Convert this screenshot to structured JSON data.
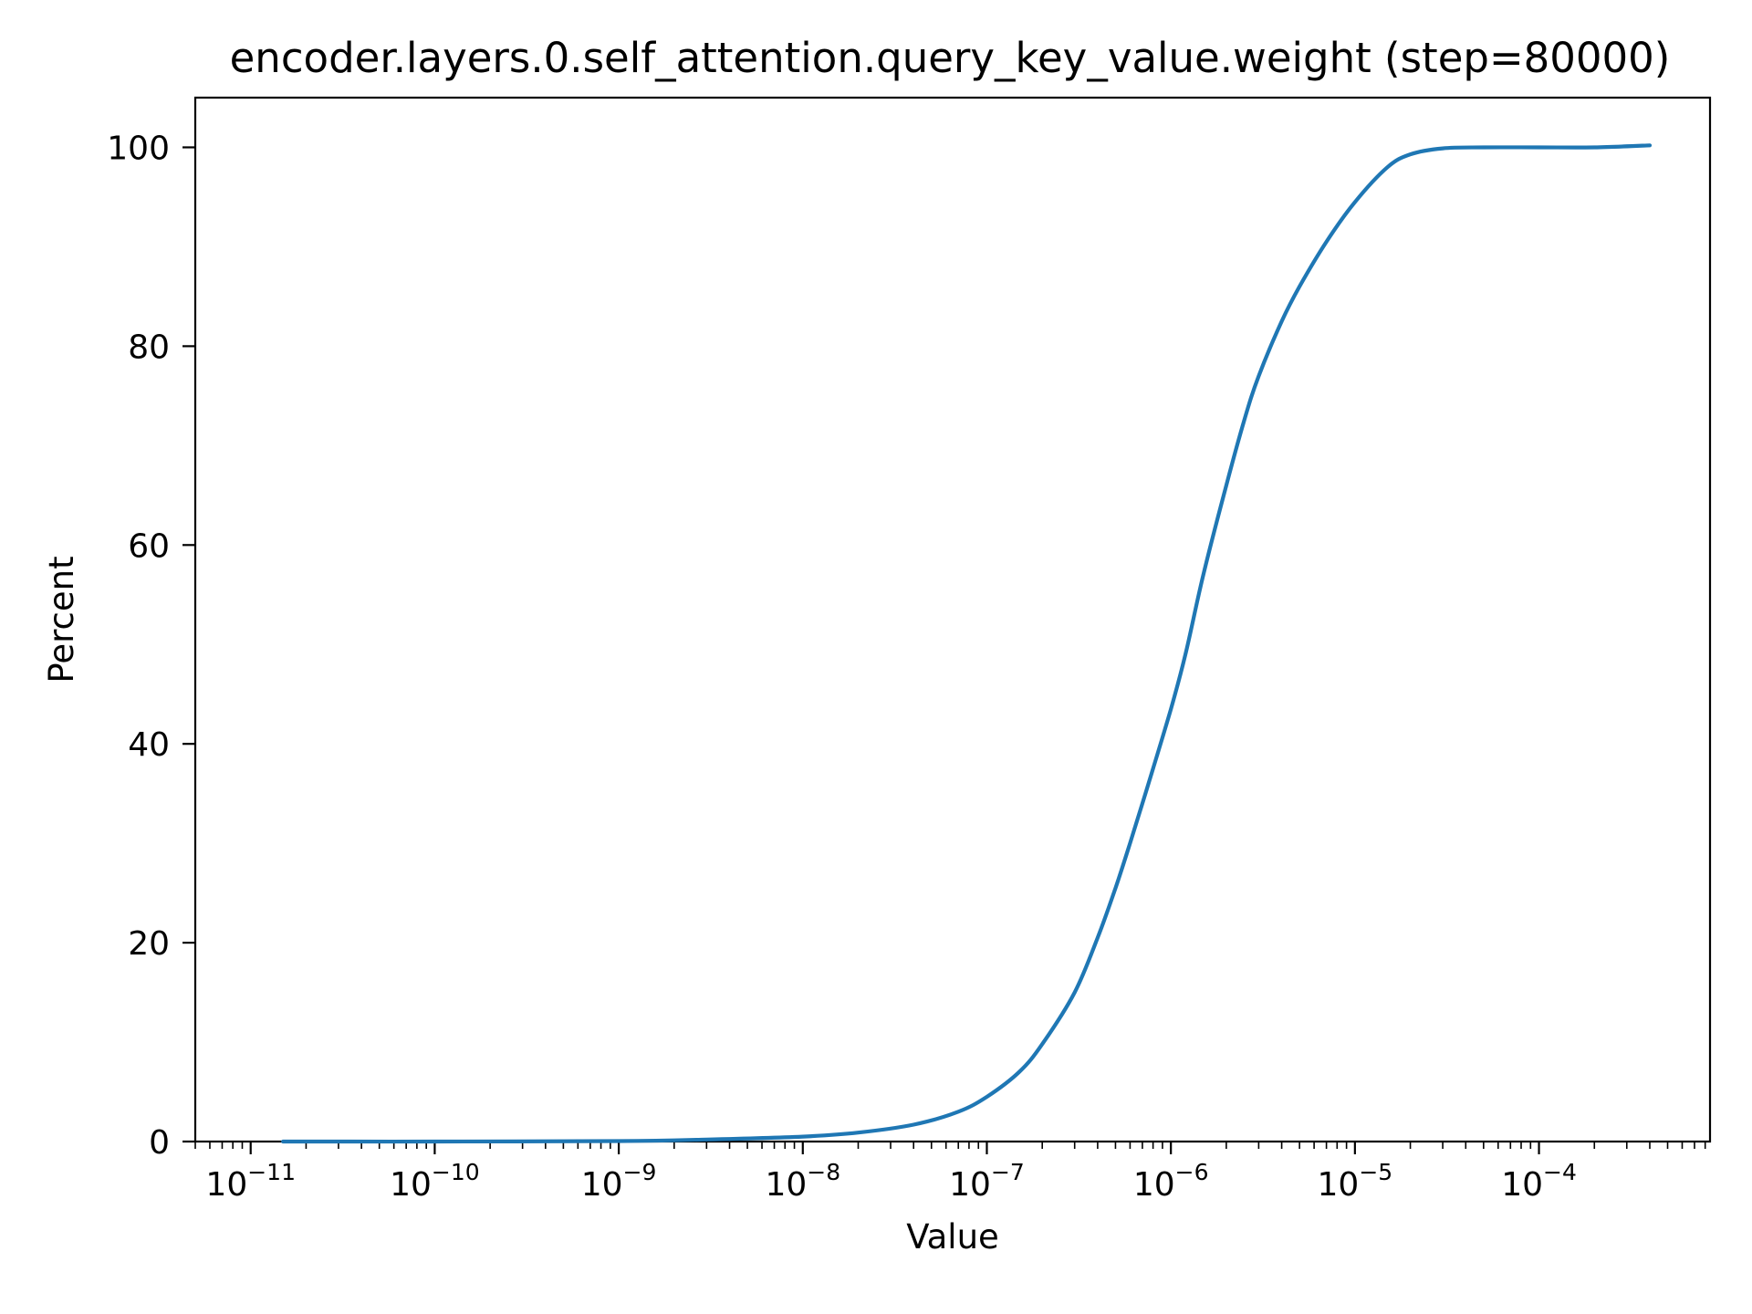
{
  "chart_data": {
    "type": "line",
    "title": "encoder.layers.0.self_attention.query_key_value.weight (step=80000)",
    "xlabel": "Value",
    "ylabel": "Percent",
    "xscale": "log",
    "xlim": [
      5e-12,
      0.00085
    ],
    "ylim": [
      0,
      105
    ],
    "grid": false,
    "line_color": "#1f77b4",
    "x_ticks": [
      {
        "base": "10",
        "exp": "−11",
        "value": 1e-11
      },
      {
        "base": "10",
        "exp": "−10",
        "value": 1e-10
      },
      {
        "base": "10",
        "exp": "−9",
        "value": 1e-09
      },
      {
        "base": "10",
        "exp": "−8",
        "value": 1e-08
      },
      {
        "base": "10",
        "exp": "−7",
        "value": 1e-07
      },
      {
        "base": "10",
        "exp": "−6",
        "value": 1e-06
      },
      {
        "base": "10",
        "exp": "−5",
        "value": 1e-05
      },
      {
        "base": "10",
        "exp": "−4",
        "value": 0.0001
      }
    ],
    "y_ticks": [
      {
        "label": "0",
        "value": 0
      },
      {
        "label": "20",
        "value": 20
      },
      {
        "label": "40",
        "value": 40
      },
      {
        "label": "60",
        "value": 60
      },
      {
        "label": "80",
        "value": 80
      },
      {
        "label": "100",
        "value": 100
      }
    ],
    "series": [
      {
        "x": [
          1.5e-11,
          1e-10,
          1e-09,
          3e-09,
          1e-08,
          2e-08,
          4e-08,
          7e-08,
          1e-07,
          1.5e-07,
          2e-07,
          3e-07,
          4e-07,
          5e-07,
          6e-07,
          7e-07,
          8e-07,
          1e-06,
          1.2e-06,
          1.5e-06,
          2e-06,
          2.5e-06,
          3e-06,
          4e-06,
          5e-06,
          7e-06,
          1e-05,
          1.5e-05,
          2e-05,
          3e-05,
          5e-05,
          0.0001,
          0.0002,
          0.0004
        ],
        "y": [
          0,
          0,
          0.05,
          0.2,
          0.5,
          0.9,
          1.7,
          3.0,
          4.5,
          7.0,
          9.8,
          15.0,
          20.5,
          25.5,
          30.0,
          34.0,
          37.5,
          43.5,
          49.0,
          57.0,
          66.0,
          72.5,
          77.0,
          82.5,
          86.0,
          90.5,
          94.5,
          98.0,
          99.3,
          99.9,
          100,
          100,
          100,
          100.2
        ]
      }
    ]
  }
}
